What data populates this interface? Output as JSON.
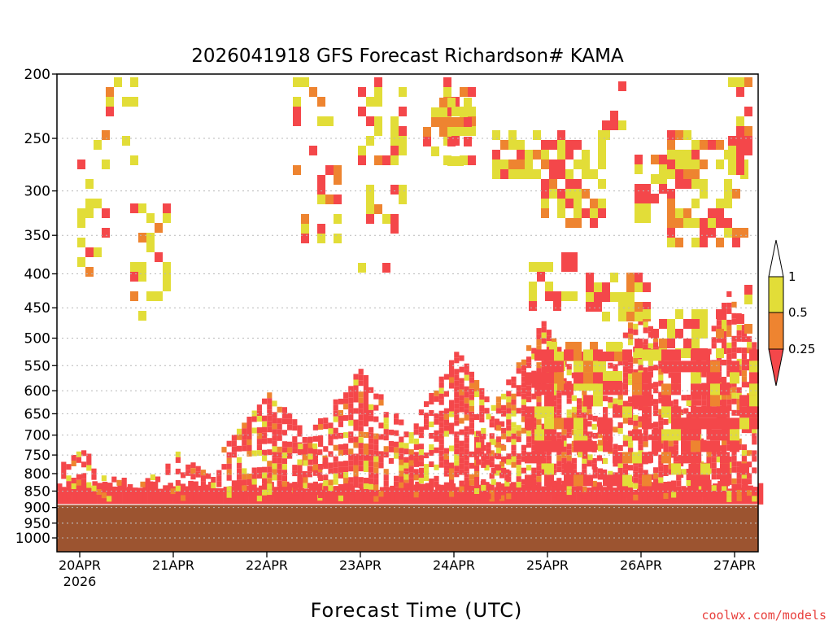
{
  "chart_data": {
    "type": "heatmap",
    "title": "2026041918 GFS Forecast Richardson# KAMA",
    "xlabel": "Forecast Time (UTC)",
    "ylabel": "",
    "y_axis": {
      "scale": "log-pressure",
      "inverted": true,
      "range": [
        1000,
        200
      ],
      "ticks": [
        "200",
        "250",
        "300",
        "350",
        "400",
        "450",
        "500",
        "550",
        "600",
        "650",
        "700",
        "750",
        "800",
        "850",
        "900",
        "950",
        "1000"
      ]
    },
    "x_axis": {
      "range": [
        "2026-04-19 18Z",
        "2026-04-27 06Z"
      ],
      "ticks": [
        "20APR",
        "21APR",
        "22APR",
        "23APR",
        "24APR",
        "25APR",
        "26APR",
        "27APR"
      ],
      "year_label": "2026"
    },
    "legend": {
      "placement": "right",
      "bins": [
        {
          "label": "1",
          "range": [
            0.5,
            1
          ],
          "color": "#e2dd38"
        },
        {
          "label": "0.5",
          "range": [
            0.25,
            0.5
          ],
          "color": "#ee8430"
        },
        {
          "label": "0.25",
          "range": [
            0,
            0.25
          ],
          "color": "#f4474a"
        }
      ]
    },
    "surface_pressure_hPa": 888,
    "surface_color": "#9c5430",
    "grid": "dotted horizontal at each pressure tick",
    "credit": "coolwx.com/models"
  }
}
